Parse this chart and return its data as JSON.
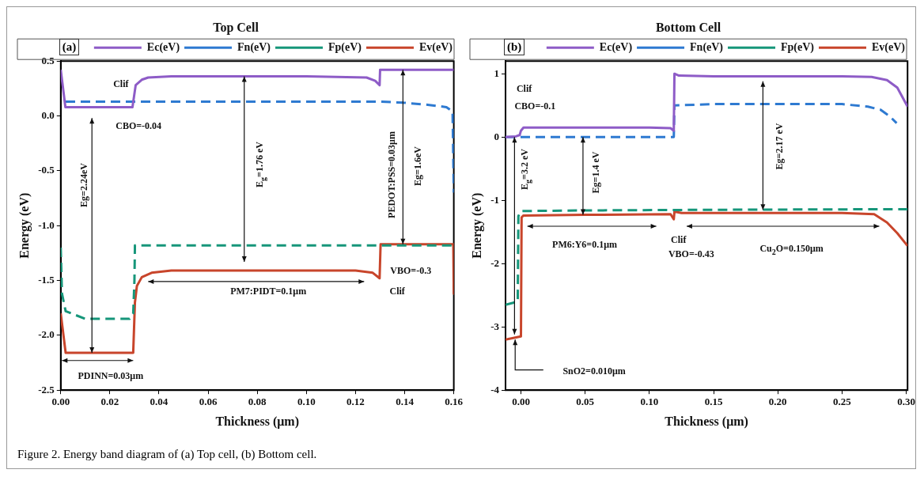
{
  "chart_data": [
    {
      "type": "line",
      "title": "Top Cell",
      "xlabel": "Thickness (μm)",
      "ylabel": "Energy (eV)",
      "legend": "top",
      "xlim": [
        0,
        0.16
      ],
      "ylim": [
        -2.5,
        0.5
      ],
      "xticks": [
        {
          "value": 0,
          "label": "0.00"
        },
        0.02,
        0.04,
        0.06,
        0.08,
        {
          "value": 0.1,
          "label": "0.10"
        },
        0.12,
        0.14,
        0.16
      ],
      "yticks": [
        -2.5,
        {
          "value": -2,
          "label": "-2.0"
        },
        -1.5,
        {
          "value": -1,
          "label": "-1.0"
        },
        -0.5,
        {
          "value": 0,
          "label": "0.0"
        },
        0.5
      ],
      "series": [
        {
          "name": "Ec(eV)",
          "color": "#8e5cc7",
          "line_style": "solid",
          "x": [
            0,
            0.0019,
            0.006,
            0.02,
            0.0292,
            0.0305,
            0.033,
            0.0356,
            0.045,
            0.1,
            0.1245,
            0.128,
            0.1298,
            0.13,
            0.145,
            0.16
          ],
          "values": [
            0.42,
            0.08,
            0.08,
            0.08,
            0.08,
            0.28,
            0.33,
            0.35,
            0.36,
            0.36,
            0.35,
            0.32,
            0.28,
            0.42,
            0.42,
            0.42
          ]
        },
        {
          "name": "Fn(eV)",
          "color": "#2e7ad1",
          "line_style": "dashed",
          "x": [
            0.002,
            0.03,
            0.06,
            0.1,
            0.13,
            0.14,
            0.15,
            0.157,
            0.1595,
            0.16
          ],
          "values": [
            0.13,
            0.13,
            0.13,
            0.13,
            0.13,
            0.12,
            0.1,
            0.08,
            0.04,
            -0.7
          ]
        },
        {
          "name": "Fp(eV)",
          "color": "#16967a",
          "line_style": "dashed",
          "x": [
            0,
            0.0005,
            0.002,
            0.01,
            0.028,
            0.0295,
            0.03,
            0.0302,
            0.06,
            0.12,
            0.16
          ],
          "values": [
            -1.2,
            -1.62,
            -1.78,
            -1.85,
            -1.85,
            -1.8,
            -1.5,
            -1.18,
            -1.18,
            -1.18,
            -1.18
          ]
        },
        {
          "name": "Ev(eV)",
          "color": "#c8452b",
          "line_style": "solid",
          "x": [
            0,
            0.002,
            0.015,
            0.0295,
            0.0302,
            0.031,
            0.033,
            0.037,
            0.045,
            0.1,
            0.12,
            0.127,
            0.1298,
            0.1302,
            0.145,
            0.1598,
            0.16
          ],
          "values": [
            -1.8,
            -2.16,
            -2.16,
            -2.16,
            -1.7,
            -1.55,
            -1.47,
            -1.43,
            -1.41,
            -1.41,
            -1.41,
            -1.43,
            -1.48,
            -1.17,
            -1.17,
            -1.17,
            -1.62
          ]
        }
      ],
      "annotations": [
        "(a)",
        "Clif",
        "CBO=-0.04",
        "Eg=2.24eV",
        "E$_{g}$=1.76 eV",
        "PEDOT:PSS=0.03μm",
        "Eg=1.6eV",
        "PM7:PIDT=0.1μm",
        "VBO=-0.3",
        "Clif",
        "PDINN=0.03μm",
        "Figure 2. Energy band diagram of (a) Top cell, (b) Bottom cell."
      ]
    },
    {
      "type": "line",
      "title": "Bottom Cell",
      "xlabel": "Thickness (μm)",
      "ylabel": "Energy (eV)",
      "legend": "top",
      "xlim": [
        -0.012,
        0.301
      ],
      "ylim": [
        -4,
        1.2
      ],
      "xticks": [
        {
          "value": 0,
          "label": "0.00"
        },
        0.05,
        {
          "value": 0.1,
          "label": "0.10"
        },
        0.15,
        {
          "value": 0.2,
          "label": "0.20"
        },
        0.25,
        {
          "value": 0.3,
          "label": "0.30"
        }
      ],
      "yticks": [
        -4,
        -3,
        -2,
        -1,
        0,
        1
      ],
      "series": [
        {
          "name": "Ec(eV)",
          "color": "#8e5cc7",
          "line_style": "solid",
          "x": [
            -0.012,
            -0.004,
            -0.001,
            0,
            0.002,
            0.05,
            0.1,
            0.1165,
            0.119,
            0.1195,
            0.123,
            0.15,
            0.25,
            0.273,
            0.285,
            0.293,
            0.301
          ],
          "values": [
            0,
            0.01,
            0.03,
            0.1,
            0.15,
            0.15,
            0.15,
            0.14,
            0.1,
            1,
            0.97,
            0.96,
            0.96,
            0.95,
            0.9,
            0.78,
            0.48
          ]
        },
        {
          "name": "Fn(eV)",
          "color": "#2e7ad1",
          "line_style": "dashed",
          "x": [
            -0.012,
            0.05,
            0.119,
            0.1195,
            0.15,
            0.25,
            0.27,
            0.28,
            0.287,
            0.2925
          ],
          "values": [
            0,
            0,
            0,
            0.5,
            0.52,
            0.52,
            0.48,
            0.43,
            0.33,
            0.22
          ]
        },
        {
          "name": "Fp(eV)",
          "color": "#16967a",
          "line_style": "dashed",
          "x": [
            -0.012,
            -0.0025,
            -0.002,
            0,
            0.05,
            0.15,
            0.301
          ],
          "values": [
            -2.65,
            -2.6,
            -1.25,
            -1.17,
            -1.16,
            -1.15,
            -1.14
          ]
        },
        {
          "name": "Ev(eV)",
          "color": "#c8452b",
          "line_style": "solid",
          "x": [
            -0.012,
            0,
            0.0005,
            0.002,
            0.05,
            0.1165,
            0.119,
            0.1195,
            0.125,
            0.25,
            0.275,
            0.285,
            0.293,
            0.301
          ],
          "values": [
            -3.2,
            -3.15,
            -1.27,
            -1.24,
            -1.23,
            -1.22,
            -1.3,
            -1.18,
            -1.2,
            -1.2,
            -1.22,
            -1.35,
            -1.52,
            -1.72
          ]
        }
      ],
      "annotations": [
        "(b)",
        "Clif",
        "CBO=-0.1",
        "E$_{g}$=3.2 eV",
        "Eg=1.4 eV",
        "Eg=2.17 eV",
        "PM6:Y6=0.1μm",
        "Clif",
        "VBO=-0.43",
        "Cu$_{2}$O=0.150μm",
        "SnO2=0.010μm"
      ]
    }
  ]
}
